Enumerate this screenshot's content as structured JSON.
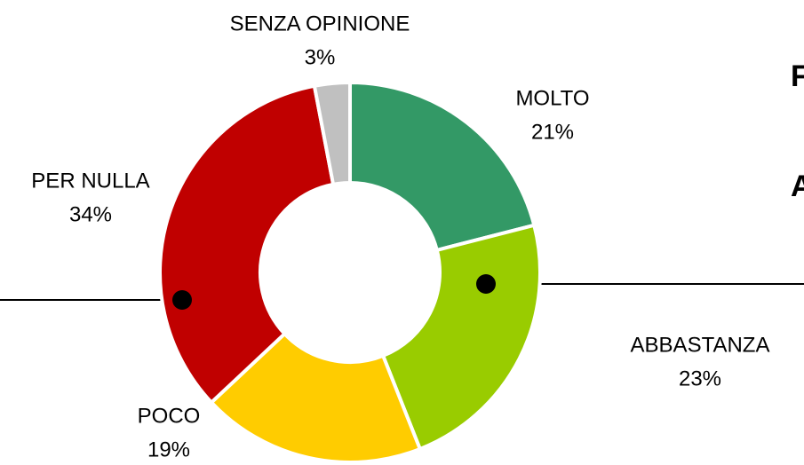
{
  "chart_data": {
    "type": "donut",
    "categories": [
      "MOLTO",
      "ABBASTANZA",
      "POCO",
      "PER NULLA",
      "SENZA OPINIONE"
    ],
    "values": [
      21,
      23,
      19,
      34,
      3
    ],
    "value_labels": [
      "21%",
      "23%",
      "19%",
      "34%",
      "3%"
    ],
    "colors": [
      "#339966",
      "#99cc00",
      "#ffcc00",
      "#c00000",
      "#c0c0c0"
    ],
    "annotations": [
      "F",
      "A"
    ]
  }
}
